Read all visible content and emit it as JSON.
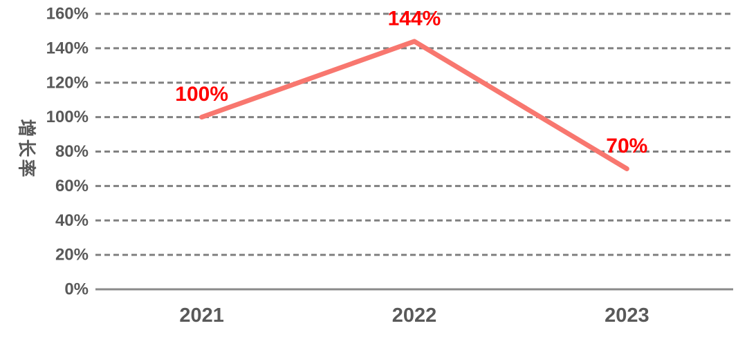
{
  "chart_data": {
    "type": "line",
    "title": "",
    "xlabel": "",
    "ylabel": "增长率",
    "categories": [
      "2021",
      "2022",
      "2023"
    ],
    "series": [
      {
        "name": "增长率",
        "values": [
          100,
          144,
          70
        ],
        "data_labels": [
          "100%",
          "144%",
          "70%"
        ]
      }
    ],
    "y_ticks": [
      0,
      20,
      40,
      60,
      80,
      100,
      120,
      140,
      160
    ],
    "y_tick_labels": [
      "0%",
      "20%",
      "40%",
      "60%",
      "80%",
      "100%",
      "120%",
      "140%",
      "160%"
    ],
    "ylim": [
      0,
      160
    ],
    "grid": "horizontal-dashed",
    "legend": "none",
    "colors": {
      "line": "#F8776F",
      "data_label": "#FF0000",
      "axis_text": "#595959",
      "gridline": "#808080",
      "axis_line": "#8A8A8A",
      "background": "#FFFFFF"
    }
  }
}
